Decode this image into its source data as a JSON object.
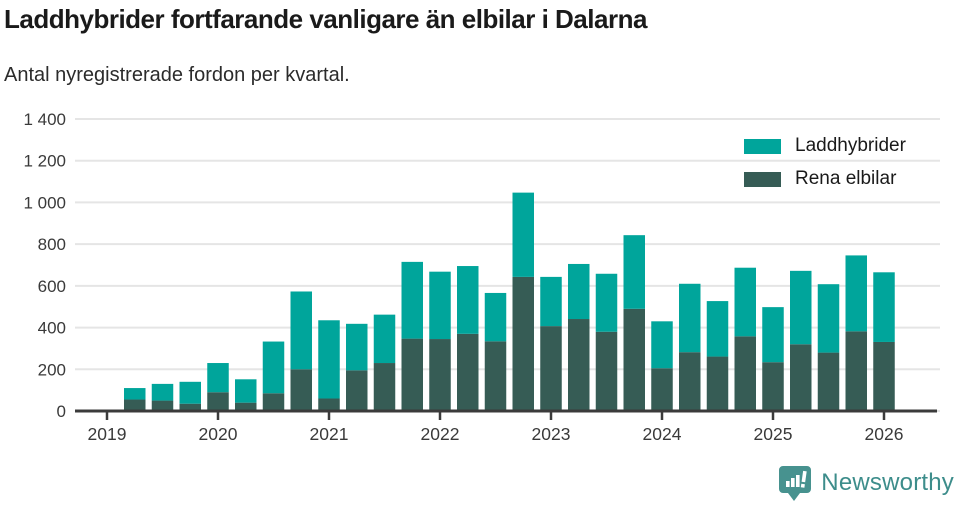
{
  "title": "Laddhybrider fortfarande vanligare än elbilar i Dalarna",
  "subtitle": "Antal nyregistrerade fordon per kvartal.",
  "legend": {
    "items": [
      {
        "label": "Laddhybrider",
        "color": "#00a59b"
      },
      {
        "label": "Rena elbilar",
        "color": "#365c55"
      }
    ]
  },
  "branding": {
    "name": "Newsworthy",
    "icon": "newsworthy-speech-bubble-chart-icon",
    "text_color": "#3d8d8b",
    "icon_color": "#47928f"
  },
  "colors": {
    "laddhybrider": "#00a59b",
    "rena_elbilar": "#365c55",
    "gridline": "#e5e5e5",
    "axis": "#3b3b3b",
    "tick_text": "#3a3a3a"
  },
  "chart_data": {
    "type": "bar",
    "stacked": true,
    "title": "Laddhybrider fortfarande vanligare än elbilar i Dalarna",
    "subtitle": "Antal nyregistrerade fordon per kvartal.",
    "xlabel": "",
    "ylabel": "",
    "ylim": [
      0,
      1400
    ],
    "grid": true,
    "legend_position": "top-right",
    "categories": [
      "2019-Q2",
      "2019-Q3",
      "2019-Q4",
      "2020-Q1",
      "2020-Q2",
      "2020-Q3",
      "2020-Q4",
      "2021-Q1",
      "2021-Q2",
      "2021-Q3",
      "2021-Q4",
      "2022-Q1",
      "2022-Q2",
      "2022-Q3",
      "2022-Q4",
      "2023-Q1",
      "2023-Q2",
      "2023-Q3",
      "2023-Q4",
      "2024-Q1",
      "2024-Q2",
      "2024-Q3",
      "2024-Q4",
      "2025-Q1",
      "2025-Q2",
      "2025-Q3",
      "2025-Q4",
      "2026-Q1"
    ],
    "series": [
      {
        "name": "Rena elbilar",
        "color": "#365c55",
        "stack_order": "bottom",
        "values": [
          55,
          50,
          35,
          90,
          40,
          85,
          200,
          60,
          195,
          230,
          347,
          345,
          370,
          334,
          643,
          407,
          441,
          380,
          490,
          205,
          282,
          261,
          358,
          234,
          320,
          280,
          382,
          331
        ]
      },
      {
        "name": "Laddhybrider",
        "color": "#00a59b",
        "stack_order": "top",
        "values": [
          55,
          80,
          105,
          140,
          112,
          248,
          373,
          375,
          223,
          232,
          368,
          323,
          325,
          232,
          404,
          236,
          264,
          278,
          353,
          225,
          328,
          266,
          329,
          264,
          352,
          328,
          364,
          334
        ]
      }
    ],
    "y_ticks": {
      "values": [
        0,
        200,
        400,
        600,
        800,
        1000,
        1200,
        1400
      ],
      "labels": [
        "0",
        "200",
        "400",
        "600",
        "800",
        "1 000",
        "1 200",
        "1 400"
      ]
    },
    "x_ticks": {
      "labels": [
        "2019",
        "2020",
        "2021",
        "2022",
        "2023",
        "2024",
        "2025",
        "2026"
      ]
    }
  }
}
